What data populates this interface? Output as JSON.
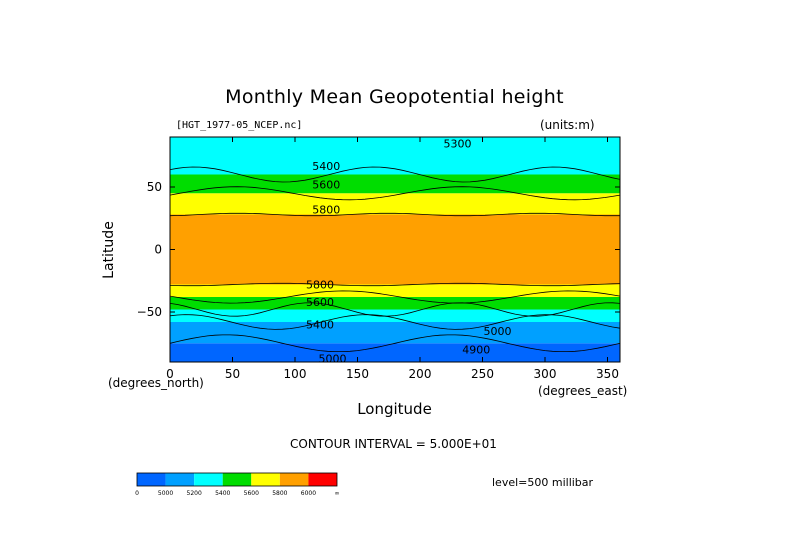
{
  "chart_data": {
    "type": "heatmap",
    "title": "Monthly Mean Geopotential height",
    "source_file": "[HGT_1977-05_NCEP.nc]",
    "units": "(units:m)",
    "xlabel": "Longitude",
    "ylabel": "Latitude",
    "x_unit_label": "(degrees_north)",
    "y_unit_label": "(degrees_east)",
    "xlim": [
      0,
      360
    ],
    "ylim": [
      -90,
      90
    ],
    "x_ticks": [
      "0",
      "50",
      "100",
      "150",
      "200",
      "250",
      "300",
      "350"
    ],
    "x_tick_values": [
      0,
      50,
      100,
      150,
      200,
      250,
      300,
      350
    ],
    "y_ticks": [
      "50",
      "0",
      "−50"
    ],
    "y_tick_values": [
      50,
      0,
      -50
    ],
    "contour_interval": "CONTOUR INTERVAL = 5.000E+01",
    "level": "level=500 millibar",
    "contour_labels": [
      {
        "text": "5300",
        "x": 230,
        "y": 85
      },
      {
        "text": "5400",
        "x": 125,
        "y": 67
      },
      {
        "text": "5600",
        "x": 125,
        "y": 52
      },
      {
        "text": "5800",
        "x": 125,
        "y": 32
      },
      {
        "text": "5800",
        "x": 120,
        "y": -28
      },
      {
        "text": "5600",
        "x": 120,
        "y": -42
      },
      {
        "text": "5400",
        "x": 120,
        "y": -60
      },
      {
        "text": "5000",
        "x": 262,
        "y": -65
      },
      {
        "text": "4900",
        "x": 245,
        "y": -80
      },
      {
        "text": "5000",
        "x": 130,
        "y": -87
      }
    ],
    "colorbar": {
      "levels": [
        "0",
        "5000",
        "5200",
        "5400",
        "5600",
        "5800",
        "6000",
        "∞"
      ],
      "colors": [
        "#0066ff",
        "#00a0ff",
        "#00ffff",
        "#00dd00",
        "#ffff00",
        "#ffa000",
        "#ff0000"
      ]
    },
    "bands": [
      {
        "lat_range": [
          -90,
          -75
        ],
        "value": "<5000",
        "color": "#0066ff"
      },
      {
        "lat_range": [
          -75,
          -58
        ],
        "value": "5000-5200",
        "color": "#00a0ff"
      },
      {
        "lat_range": [
          -58,
          -48
        ],
        "value": "5200-5400",
        "color": "#00ffff"
      },
      {
        "lat_range": [
          -48,
          -38
        ],
        "value": "5400-5600",
        "color": "#00dd00"
      },
      {
        "lat_range": [
          -38,
          -28
        ],
        "value": "5600-5800",
        "color": "#ffff00"
      },
      {
        "lat_range": [
          -28,
          28
        ],
        "value": "5800-6000",
        "color": "#ffa000"
      },
      {
        "lat_range": [
          28,
          45
        ],
        "value": "5600-5800",
        "color": "#ffff00"
      },
      {
        "lat_range": [
          45,
          60
        ],
        "value": "5400-5600",
        "color": "#00dd00"
      },
      {
        "lat_range": [
          60,
          90
        ],
        "value": "5200-5400",
        "color": "#00ffff"
      }
    ]
  }
}
